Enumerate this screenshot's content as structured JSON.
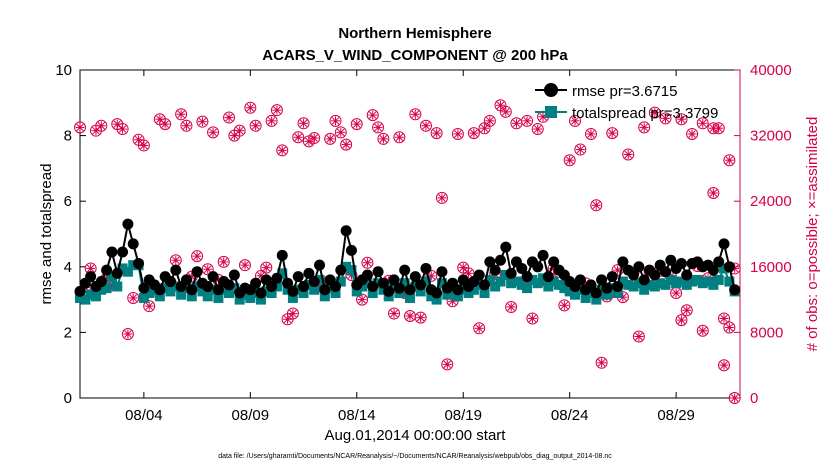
{
  "chart_data": {
    "type": "line",
    "title": "Northern Hemisphere",
    "subtitle": "ACARS_V_WIND_COMPONENT @ 200 hPa",
    "xlabel": "Aug.01,2014 00:00:00 start",
    "ylabel": "rmse and totalspread",
    "y2label": "# of obs: o=possible; ×=assimilated",
    "footnote": "data file: /Users/gharamti/Documents/NCAR/Reanalysis/~/Documents/NCAR/Reanalysis/webpub/obs_diag_output_2014-08.nc",
    "xlim": [
      1,
      32
    ],
    "ylim": [
      0,
      10
    ],
    "y2lim": [
      0,
      40000
    ],
    "xtick_values": [
      4,
      9,
      14,
      19,
      24,
      29
    ],
    "xtick_labels": [
      "08/04",
      "08/09",
      "08/14",
      "08/19",
      "08/24",
      "08/29"
    ],
    "ytick_values": [
      0,
      2,
      4,
      6,
      8,
      10
    ],
    "ytick_labels": [
      "0",
      "2",
      "4",
      "6",
      "8",
      "10"
    ],
    "y2tick_values": [
      0,
      8000,
      16000,
      24000,
      32000,
      40000
    ],
    "y2tick_labels": [
      "0",
      "8000",
      "16000",
      "24000",
      "32000",
      "40000"
    ],
    "colors": {
      "rmse": "#000000",
      "totalspread": "#008080",
      "obs": "#d6004c",
      "axis": "#000000"
    },
    "legend": {
      "position": "top-right",
      "rmse_label": "rmse pr=3.6715",
      "spread_label": "totalspread pr=3.3799"
    },
    "x": [
      1.0,
      1.25,
      1.5,
      1.75,
      2.0,
      2.25,
      2.5,
      2.75,
      3.0,
      3.25,
      3.5,
      3.75,
      4.0,
      4.25,
      4.5,
      4.75,
      5.0,
      5.25,
      5.5,
      5.75,
      6.0,
      6.25,
      6.5,
      6.75,
      7.0,
      7.25,
      7.5,
      7.75,
      8.0,
      8.25,
      8.5,
      8.75,
      9.0,
      9.25,
      9.5,
      9.75,
      10.0,
      10.25,
      10.5,
      10.75,
      11.0,
      11.25,
      11.5,
      11.75,
      12.0,
      12.25,
      12.5,
      12.75,
      13.0,
      13.25,
      13.5,
      13.75,
      14.0,
      14.25,
      14.5,
      14.75,
      15.0,
      15.25,
      15.5,
      15.75,
      16.0,
      16.25,
      16.5,
      16.75,
      17.0,
      17.25,
      17.5,
      17.75,
      18.0,
      18.25,
      18.5,
      18.75,
      19.0,
      19.25,
      19.5,
      19.75,
      20.0,
      20.25,
      20.5,
      20.75,
      21.0,
      21.25,
      21.5,
      21.75,
      22.0,
      22.25,
      22.5,
      22.75,
      23.0,
      23.25,
      23.5,
      23.75,
      24.0,
      24.25,
      24.5,
      24.75,
      25.0,
      25.25,
      25.5,
      25.75,
      26.0,
      26.25,
      26.5,
      26.75,
      27.0,
      27.25,
      27.5,
      27.75,
      28.0,
      28.25,
      28.5,
      28.75,
      29.0,
      29.25,
      29.5,
      29.75,
      30.0,
      30.25,
      30.5,
      30.75,
      31.0,
      31.25,
      31.5,
      31.75
    ],
    "series": [
      {
        "name": "rmse",
        "values": [
          3.25,
          3.5,
          3.7,
          3.4,
          3.55,
          3.9,
          4.45,
          3.8,
          4.45,
          5.3,
          4.7,
          4.1,
          3.35,
          3.6,
          3.45,
          3.3,
          3.7,
          3.55,
          3.9,
          3.4,
          3.6,
          3.3,
          3.85,
          3.5,
          3.4,
          3.7,
          3.3,
          3.55,
          3.45,
          3.75,
          3.2,
          3.35,
          3.3,
          3.5,
          3.2,
          3.6,
          3.4,
          3.65,
          4.35,
          3.5,
          3.25,
          3.7,
          3.4,
          3.8,
          3.55,
          4.05,
          3.3,
          3.6,
          3.4,
          3.9,
          5.1,
          4.5,
          3.45,
          3.6,
          3.75,
          3.4,
          3.85,
          3.5,
          3.25,
          3.6,
          3.35,
          3.9,
          3.3,
          3.7,
          3.45,
          3.95,
          3.3,
          3.2,
          3.85,
          3.35,
          3.5,
          3.3,
          3.6,
          3.4,
          3.55,
          3.75,
          3.45,
          4.15,
          3.9,
          4.2,
          4.6,
          3.8,
          4.15,
          3.95,
          3.7,
          4.15,
          4.0,
          4.35,
          3.7,
          4.15,
          3.9,
          3.75,
          3.55,
          3.4,
          3.6,
          3.3,
          3.45,
          3.2,
          3.6,
          3.35,
          3.7,
          3.4,
          4.15,
          3.9,
          3.75,
          4.0,
          3.6,
          3.9,
          3.75,
          4.05,
          3.85,
          4.2,
          3.95,
          4.1,
          3.75,
          4.1,
          4.15,
          4.0,
          4.05,
          3.9,
          4.15,
          4.7,
          4.0,
          3.3
        ],
        "marker": "circle"
      },
      {
        "name": "totalspread",
        "values": [
          3.05,
          3.0,
          3.15,
          3.1,
          3.3,
          3.35,
          3.7,
          3.4,
          3.95,
          3.85,
          4.05,
          4.05,
          3.05,
          3.2,
          3.3,
          3.1,
          3.35,
          3.25,
          3.4,
          3.15,
          3.35,
          3.1,
          3.4,
          3.25,
          3.1,
          3.3,
          3.05,
          3.3,
          3.2,
          3.35,
          3.0,
          3.15,
          3.05,
          3.2,
          3.0,
          3.25,
          3.2,
          3.4,
          3.8,
          3.3,
          3.05,
          3.3,
          3.2,
          3.45,
          3.3,
          3.6,
          3.1,
          3.35,
          3.2,
          3.55,
          4.0,
          3.9,
          3.25,
          3.4,
          3.5,
          3.2,
          3.5,
          3.3,
          3.1,
          3.35,
          3.2,
          3.5,
          3.05,
          3.4,
          3.25,
          3.55,
          3.1,
          3.0,
          3.5,
          3.15,
          3.25,
          3.1,
          3.3,
          3.2,
          3.3,
          3.45,
          3.2,
          3.6,
          3.4,
          3.55,
          3.75,
          3.5,
          3.55,
          3.45,
          3.35,
          3.6,
          3.5,
          3.65,
          3.4,
          3.55,
          3.45,
          3.35,
          3.25,
          3.15,
          3.3,
          3.05,
          3.2,
          3.0,
          3.3,
          3.15,
          3.35,
          3.2,
          3.55,
          3.45,
          3.4,
          3.5,
          3.3,
          3.45,
          3.4,
          3.5,
          3.45,
          3.6,
          3.5,
          3.55,
          3.45,
          3.55,
          3.6,
          3.5,
          3.55,
          3.45,
          3.6,
          3.95,
          3.55,
          3.25
        ],
        "marker": "square"
      },
      {
        "name": "possible",
        "axis": "right",
        "marker": "circle-open",
        "x": [
          1.0,
          1.25,
          1.5,
          1.75,
          2.0,
          2.25,
          2.5,
          2.75,
          3.0,
          3.25,
          3.5,
          3.75,
          4.0,
          4.25,
          4.5,
          4.75,
          5.0,
          5.25,
          5.5,
          5.75,
          6.0,
          6.25,
          6.5,
          6.75,
          7.0,
          7.25,
          7.5,
          7.75,
          8.0,
          8.25,
          8.5,
          8.75,
          9.0,
          9.25,
          9.5,
          9.75,
          10.0,
          10.25,
          10.5,
          10.75,
          11.0,
          11.25,
          11.5,
          11.75,
          12.0,
          12.25,
          12.5,
          12.75,
          13.0,
          13.25,
          13.5,
          13.75,
          14.0,
          14.25,
          14.5,
          14.75,
          15.0,
          15.25,
          15.5,
          15.75,
          16.0,
          16.25,
          16.5,
          16.75,
          17.0,
          17.25,
          17.5,
          17.75,
          18.0,
          18.25,
          18.5,
          18.75,
          19.0,
          19.25,
          19.5,
          19.75,
          20.0,
          20.25,
          20.5,
          20.75,
          21.0,
          21.25,
          21.5,
          21.75,
          22.0,
          22.25,
          22.5,
          22.75,
          23.0,
          23.25,
          23.5,
          23.75,
          24.0,
          24.25,
          24.5,
          24.75,
          25.0,
          25.25,
          25.5,
          25.75,
          26.0,
          26.25,
          26.5,
          26.75,
          27.0,
          27.25,
          27.5,
          27.75,
          28.0,
          28.25,
          28.5,
          28.75,
          29.0,
          29.25,
          29.5,
          29.75,
          30.0,
          30.25,
          30.5,
          30.75,
          31.0,
          31.25,
          31.5,
          31.75
        ],
        "values": [
          33000,
          13500,
          15800,
          32600,
          33200,
          14600,
          13800,
          33400,
          32800,
          7800,
          12200,
          31500,
          30800,
          11200,
          13100,
          34000,
          33400,
          14100,
          16800,
          34600,
          33200,
          14800,
          17300,
          33700,
          15700,
          32400,
          14400,
          16600,
          34200,
          32000,
          32600,
          16200,
          35400,
          33200,
          14900,
          15900,
          33800,
          35100,
          30200,
          9600,
          10300,
          31800,
          33500,
          31300,
          31700,
          13600,
          14100,
          31600,
          33800,
          32400,
          30900,
          15000,
          33400,
          12000,
          16500,
          34500,
          33000,
          31600,
          14300,
          10300,
          31800,
          12800,
          10000,
          34600,
          9800,
          33200,
          14900,
          32300,
          24400,
          4100,
          11800,
          32200,
          15900,
          15200,
          32300,
          8500,
          32900,
          33800,
          15100,
          35700,
          34900,
          11100,
          33500,
          14100,
          33800,
          9700,
          32800,
          34300,
          14000,
          15800,
          15400,
          11300,
          29000,
          33800,
          30300,
          14000,
          32200,
          23500,
          4300,
          12400,
          32300,
          15600,
          12300,
          29700,
          15300,
          7500,
          33000,
          15500,
          34800,
          15500,
          34100,
          14900,
          12800,
          34000,
          10700,
          32200,
          16100,
          33500,
          14600,
          32900,
          32900,
          9700,
          29000,
          15800
        ],
        "extra": [
          [
            31.75,
            0
          ],
          [
            30.75,
            25000
          ],
          [
            31.25,
            4000
          ],
          [
            30.25,
            8200
          ],
          [
            31.5,
            8600
          ],
          [
            29.25,
            9500
          ]
        ]
      },
      {
        "name": "assimilated",
        "axis": "right",
        "marker": "x-cross",
        "note": "assimilated counts coincide with possible counts (same x positions)"
      }
    ]
  }
}
